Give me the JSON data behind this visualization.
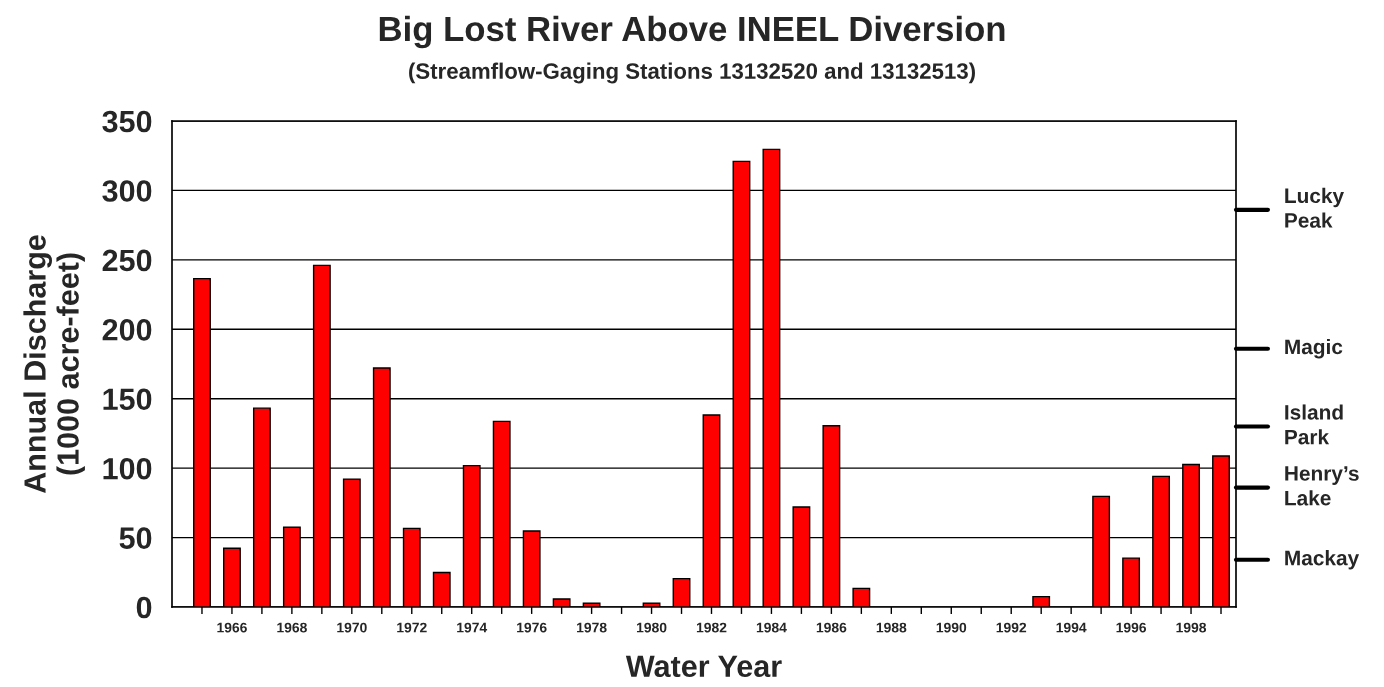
{
  "chart_data": {
    "type": "bar",
    "title": "Big Lost River Above INEEL Diversion",
    "subtitle": "(Streamflow-Gaging Stations 13132520 and 13132513)",
    "xlabel": "Water Year",
    "ylabel": "Annual Discharge\n(1000 acre-feet)",
    "categories": [
      null,
      "1966",
      null,
      "1968",
      null,
      "1970",
      null,
      "1972",
      null,
      "1974",
      null,
      "1976",
      null,
      "1978",
      null,
      "1980",
      null,
      "1982",
      null,
      "1984",
      null,
      "1986",
      null,
      "1988",
      null,
      "1990",
      null,
      "1992",
      null,
      "1994",
      null,
      "1996",
      null,
      "1998",
      null
    ],
    "series": [
      {
        "color": "#ff0000",
        "values": [
          236.5,
          42.3,
          143.2,
          57.4,
          246,
          92.1,
          172.1,
          56.6,
          24.8,
          101.8,
          133.7,
          54.7,
          5.8,
          2.7,
          0,
          2.7,
          20.4,
          138.3,
          320.9,
          329.6,
          72,
          130.5,
          13.4,
          0,
          0,
          0,
          0,
          0,
          7.5,
          0,
          79.7,
          35.2,
          94.1,
          102.6,
          108.7
        ]
      }
    ],
    "ylim": [
      0,
      350
    ],
    "yticks": [
      0,
      50,
      100,
      150,
      200,
      250,
      300,
      350
    ],
    "ref_lines": [
      {
        "axis": "y",
        "value": 286,
        "label": "Lucky\nPeak"
      },
      {
        "axis": "y",
        "value": 186,
        "label": "Magic"
      },
      {
        "axis": "y",
        "value": 130,
        "label": "Island\nPark"
      },
      {
        "axis": "y",
        "value": 86,
        "label": "Henry’s\nLake"
      },
      {
        "axis": "y",
        "value": 34,
        "label": "Mackay"
      }
    ],
    "grid": "y",
    "legend": false
  }
}
